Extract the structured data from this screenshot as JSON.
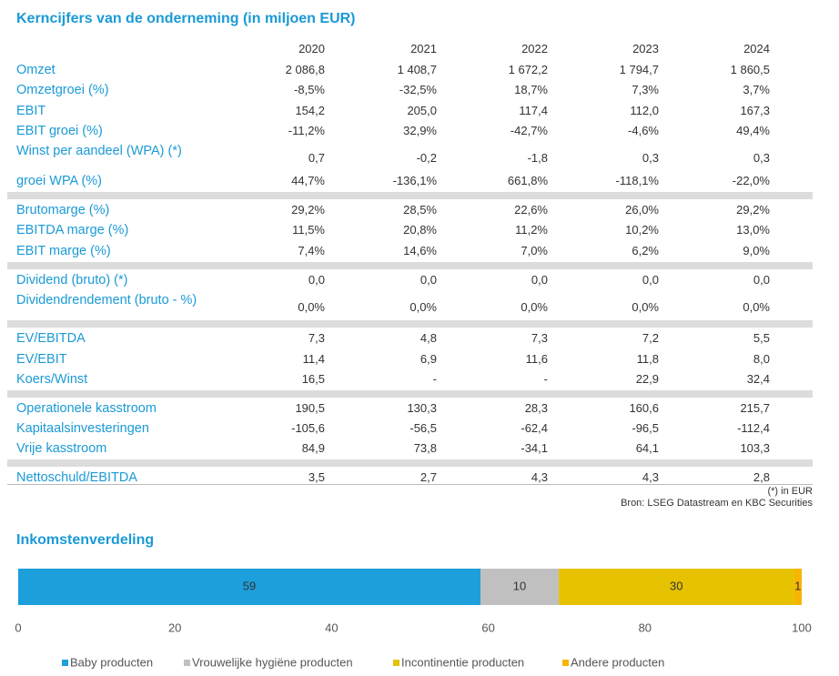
{
  "table": {
    "title": "Kerncijfers van de onderneming (in miljoen EUR)",
    "columns": [
      "2020",
      "2021",
      "2022",
      "2023",
      "2024"
    ],
    "groups": [
      {
        "rows": [
          {
            "label": "Omzet",
            "values": [
              "2 086,8",
              "1 408,7",
              "1 672,2",
              "1 794,7",
              "1 860,5"
            ]
          },
          {
            "label": "Omzetgroei (%)",
            "values": [
              "-8,5%",
              "-32,5%",
              "18,7%",
              "7,3%",
              "3,7%"
            ]
          },
          {
            "label": "EBIT",
            "values": [
              "154,2",
              "205,0",
              "117,4",
              "112,0",
              "167,3"
            ]
          },
          {
            "label": "EBIT groei (%)",
            "values": [
              "-11,2%",
              "32,9%",
              "-42,7%",
              "-4,6%",
              "49,4%"
            ]
          },
          {
            "label": "Winst per aandeel (WPA) (*)",
            "values": [
              "0,7",
              "-0,2",
              "-1,8",
              "0,3",
              "0,3"
            ]
          },
          {
            "label": "groei WPA (%)",
            "values": [
              "44,7%",
              "-136,1%",
              "661,8%",
              "-118,1%",
              "-22,0%"
            ]
          }
        ]
      },
      {
        "rows": [
          {
            "label": "Brutomarge (%)",
            "values": [
              "29,2%",
              "28,5%",
              "22,6%",
              "26,0%",
              "29,2%"
            ]
          },
          {
            "label": "EBITDA marge (%)",
            "values": [
              "11,5%",
              "20,8%",
              "11,2%",
              "10,2%",
              "13,0%"
            ]
          },
          {
            "label": "EBIT marge (%)",
            "values": [
              "7,4%",
              "14,6%",
              "7,0%",
              "6,2%",
              "9,0%"
            ]
          }
        ]
      },
      {
        "rows": [
          {
            "label": "Dividend (bruto) (*)",
            "values": [
              "0,0",
              "0,0",
              "0,0",
              "0,0",
              "0,0"
            ]
          },
          {
            "label": "Dividendrendement (bruto - %)",
            "values": [
              "0,0%",
              "0,0%",
              "0,0%",
              "0,0%",
              "0,0%"
            ]
          }
        ]
      },
      {
        "rows": [
          {
            "label": "EV/EBITDA",
            "values": [
              "7,3",
              "4,8",
              "7,3",
              "7,2",
              "5,5"
            ]
          },
          {
            "label": "EV/EBIT",
            "values": [
              "11,4",
              "6,9",
              "11,6",
              "11,8",
              "8,0"
            ]
          },
          {
            "label": "Koers/Winst",
            "values": [
              "16,5",
              "-",
              "-",
              "22,9",
              "32,4"
            ]
          }
        ]
      },
      {
        "rows": [
          {
            "label": "Operationele kasstroom",
            "values": [
              "190,5",
              "130,3",
              "28,3",
              "160,6",
              "215,7"
            ]
          },
          {
            "label": "Kapitaalsinvesteringen",
            "values": [
              "-105,6",
              "-56,5",
              "-62,4",
              "-96,5",
              "-112,4"
            ]
          },
          {
            "label": "Vrije kasstroom",
            "values": [
              "84,9",
              "73,8",
              "-34,1",
              "64,1",
              "103,3"
            ]
          }
        ]
      },
      {
        "rows": [
          {
            "label": "Nettoschuld/EBITDA",
            "values": [
              "3,5",
              "2,7",
              "4,3",
              "4,3",
              "2,8"
            ]
          }
        ]
      }
    ],
    "notes": [
      "(*) in EUR",
      "Bron: LSEG Datastream en KBC Securities"
    ]
  },
  "chart_data": {
    "type": "bar",
    "orientation": "horizontal",
    "stacked": true,
    "title": "Inkomstenverdeling",
    "categories": [
      null
    ],
    "series": [
      {
        "name": "Baby producten",
        "color": "#1c9fdb",
        "values": [
          59
        ]
      },
      {
        "name": "Vrouwelijke hygiëne producten",
        "color": "#c0c0c0",
        "values": [
          10
        ]
      },
      {
        "name": "Incontinentie producten",
        "color": "#e6c200",
        "values": [
          30
        ]
      },
      {
        "name": "Andere producten",
        "color": "#f7b500",
        "values": [
          1
        ]
      }
    ],
    "xlim": [
      0,
      100
    ],
    "xticks": [
      0,
      20,
      40,
      60,
      80,
      100
    ],
    "legend": "bottom"
  }
}
